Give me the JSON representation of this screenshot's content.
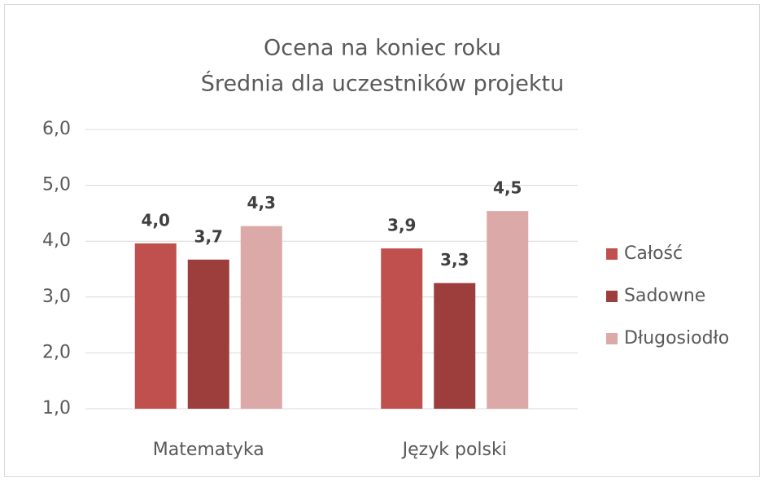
{
  "chart_data": {
    "type": "bar",
    "title": "Ocena na koniec roku",
    "subtitle": "Średnia dla uczestników projektu",
    "categories": [
      "Matematyka",
      "Język polski"
    ],
    "series": [
      {
        "name": "Całość",
        "color": "#c0504d",
        "values": [
          3.96,
          3.87
        ],
        "value_labels": [
          "4,0",
          "3,9"
        ]
      },
      {
        "name": "Sadowne",
        "color": "#9e3e3c",
        "values": [
          3.67,
          3.25
        ],
        "value_labels": [
          "3,7",
          "3,3"
        ]
      },
      {
        "name": "Długosiodło",
        "color": "#dba9a8",
        "values": [
          4.27,
          4.54
        ],
        "value_labels": [
          "4,3",
          "4,5"
        ]
      }
    ],
    "ylim": [
      1,
      6
    ],
    "yticks": [
      {
        "value": 1,
        "label": "1,0"
      },
      {
        "value": 2,
        "label": "2,0"
      },
      {
        "value": 3,
        "label": "3,0"
      },
      {
        "value": 4,
        "label": "4,0"
      },
      {
        "value": 5,
        "label": "5,0"
      },
      {
        "value": 6,
        "label": "6,0"
      }
    ],
    "grid": true,
    "legend": "right"
  }
}
